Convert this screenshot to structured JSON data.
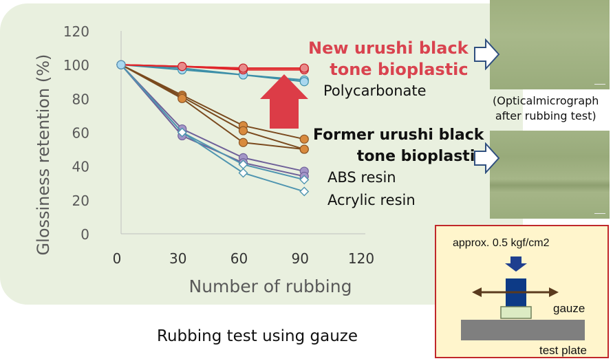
{
  "chart_data": {
    "type": "line",
    "xlabel": "Number of rubbing",
    "ylabel": "Glossiness retention (%)",
    "xlim": [
      0,
      120
    ],
    "ylim": [
      0,
      120
    ],
    "x_ticks": [
      "0",
      "30",
      "60",
      "90",
      "120"
    ],
    "y_ticks": [
      "0",
      "20",
      "40",
      "60",
      "80",
      "100",
      "120"
    ],
    "series": [
      {
        "group": "New urushi black tone bioplastic",
        "color": "#e0262b",
        "marker": "circle",
        "x": [
          0,
          30,
          60,
          90
        ],
        "y": [
          100,
          99,
          98,
          98
        ]
      },
      {
        "group": "New urushi black tone bioplastic",
        "color": "#e0262b",
        "marker": "circle",
        "x": [
          0,
          30,
          60,
          90
        ],
        "y": [
          100,
          99,
          97,
          97
        ]
      },
      {
        "group": "New urushi black tone bioplastic",
        "color": "#e0262b",
        "marker": "circle",
        "x": [
          0,
          30,
          60,
          90
        ],
        "y": [
          100,
          99,
          98,
          98
        ]
      },
      {
        "name": "Polycarbonate",
        "color": "#3d8fa8",
        "marker": "circle",
        "x": [
          0,
          30,
          60,
          90
        ],
        "y": [
          100,
          98,
          94,
          91
        ]
      },
      {
        "name": "Polycarbonate",
        "color": "#3d8fa8",
        "marker": "circle",
        "x": [
          0,
          30,
          60,
          90
        ],
        "y": [
          100,
          97,
          94,
          90
        ]
      },
      {
        "group": "Former urushi black tone bioplastic",
        "color": "#7a4a1e",
        "marker": "circle",
        "x": [
          0,
          30,
          60,
          90
        ],
        "y": [
          100,
          82,
          64,
          56
        ]
      },
      {
        "group": "Former urushi black tone bioplastic",
        "color": "#7a4a1e",
        "marker": "circle",
        "x": [
          0,
          30,
          60,
          90
        ],
        "y": [
          100,
          81,
          61,
          50
        ]
      },
      {
        "group": "Former urushi black tone bioplastic",
        "color": "#7a4a1e",
        "marker": "circle",
        "x": [
          0,
          30,
          60,
          90
        ],
        "y": [
          100,
          80,
          54,
          50
        ]
      },
      {
        "name": "ABS resin",
        "color": "#6f6199",
        "marker": "circle",
        "x": [
          0,
          30,
          60,
          90
        ],
        "y": [
          100,
          62,
          45,
          37
        ]
      },
      {
        "name": "ABS resin",
        "color": "#6f6199",
        "marker": "circle",
        "x": [
          0,
          30,
          60,
          90
        ],
        "y": [
          100,
          58,
          42,
          34
        ]
      },
      {
        "name": "Acrylic resin",
        "color": "#4f95b0",
        "marker": "diamond",
        "x": [
          0,
          30,
          60,
          90
        ],
        "y": [
          100,
          60,
          41,
          32
        ]
      },
      {
        "name": "Acrylic resin",
        "color": "#4f95b0",
        "marker": "diamond",
        "x": [
          0,
          30,
          60,
          90
        ],
        "y": [
          100,
          60,
          36,
          25
        ]
      }
    ]
  },
  "labels": {
    "new_line1": "New urushi black",
    "new_line2": "tone bioplastic",
    "polycarbonate": "Polycarbonate",
    "former_line1": "Former urushi black",
    "former_line2": "tone bioplastic",
    "abs": "ABS resin",
    "acrylic": "Acrylic resin",
    "micro_note_line1": "(Opticalmicrograph",
    "micro_note_line2": "after rubbing test)",
    "caption": "Rubbing test using gauze",
    "load": "approx. 0.5 kgf/cm2",
    "gauze": "gauze",
    "test_plate": "test plate"
  },
  "colors": {
    "new_bioplastic": "#e0262b",
    "polycarbonate": "#3d8fa8",
    "former_bioplastic": "#7a4a1e",
    "abs": "#6f6199",
    "acrylic": "#4f95b0",
    "improvement_arrow": "#dc3c47",
    "panel_background": "#e9f0df"
  }
}
